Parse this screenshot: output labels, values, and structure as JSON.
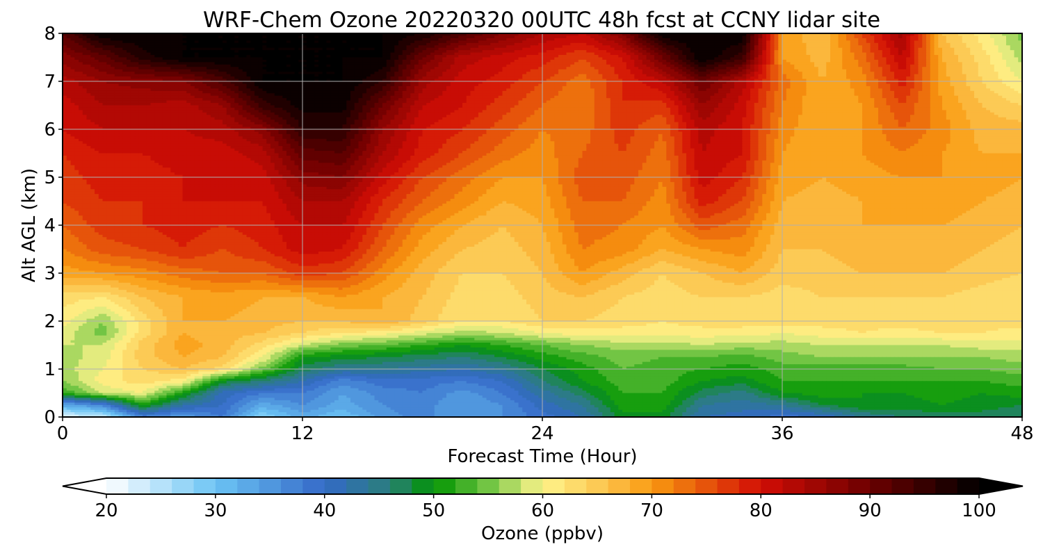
{
  "chart_data": {
    "type": "heatmap",
    "title": "WRF-Chem Ozone  20220320 00UTC 48h fcst at CCNY lidar site",
    "xlabel": "Forecast Time (Hour)",
    "ylabel": "Alt AGL (km)",
    "xlim": [
      0,
      48
    ],
    "ylim": [
      0,
      8
    ],
    "xticks": [
      "0",
      "12",
      "24",
      "36",
      "48"
    ],
    "yticks": [
      "0",
      "1",
      "2",
      "3",
      "4",
      "5",
      "6",
      "7",
      "8"
    ],
    "grid": true,
    "colorbar": {
      "label": "Ozone  (ppbv)",
      "min": 20,
      "max": 100,
      "step": 2,
      "extend": "both",
      "ticks": [
        "20",
        "30",
        "40",
        "50",
        "60",
        "70",
        "80",
        "90",
        "100"
      ],
      "stops": [
        {
          "v": 20,
          "c": "#ffffff"
        },
        {
          "v": 30,
          "c": "#6cc4f4"
        },
        {
          "v": 40,
          "c": "#3469c8"
        },
        {
          "v": 46,
          "c": "#2a7f7a"
        },
        {
          "v": 50,
          "c": "#009400"
        },
        {
          "v": 55,
          "c": "#72c544"
        },
        {
          "v": 60,
          "c": "#fff58c"
        },
        {
          "v": 66,
          "c": "#fbc14a"
        },
        {
          "v": 70,
          "c": "#f99a10"
        },
        {
          "v": 80,
          "c": "#d20d05"
        },
        {
          "v": 90,
          "c": "#6c0000"
        },
        {
          "v": 100,
          "c": "#000000"
        }
      ]
    },
    "x": [
      0,
      2,
      4,
      6,
      8,
      10,
      12,
      14,
      16,
      18,
      20,
      22,
      24,
      26,
      28,
      30,
      32,
      34,
      36,
      38,
      40,
      42,
      44,
      46,
      48
    ],
    "y": [
      0,
      0.25,
      0.5,
      0.75,
      1,
      1.25,
      1.5,
      1.75,
      2,
      2.5,
      3,
      3.5,
      4,
      4.5,
      5,
      5.5,
      6,
      6.5,
      7,
      7.5,
      8
    ],
    "z": [
      [
        22,
        24,
        37,
        34,
        38,
        28,
        33,
        30,
        35,
        37,
        34,
        36,
        39,
        42,
        49,
        49,
        42,
        41,
        39,
        40,
        44,
        46,
        47,
        47,
        46
      ],
      [
        33,
        37,
        51,
        43,
        40,
        33,
        36,
        33,
        36,
        37,
        34,
        36,
        41,
        44,
        51,
        51,
        44,
        43,
        44,
        48,
        50,
        49,
        50,
        49,
        48
      ],
      [
        52,
        58,
        60,
        51,
        41,
        38,
        38,
        34,
        37,
        38,
        35,
        38,
        43,
        47,
        52,
        52,
        47,
        45,
        50,
        51,
        50,
        50,
        51,
        50,
        51
      ],
      [
        56,
        61,
        63,
        61,
        49,
        46,
        42,
        37,
        39,
        39,
        38,
        40,
        46,
        50,
        53,
        53,
        50,
        49,
        52,
        52,
        52,
        52,
        52,
        52,
        53
      ],
      [
        57,
        60,
        64,
        66,
        63,
        55,
        47,
        44,
        44,
        43,
        42,
        44,
        48,
        51,
        54,
        53,
        52,
        51,
        53,
        53,
        53,
        53,
        54,
        54,
        55
      ],
      [
        57,
        59,
        65,
        68,
        66,
        60,
        50,
        49,
        48,
        47,
        46,
        48,
        51,
        53,
        55,
        54,
        54,
        53,
        55,
        56,
        56,
        56,
        56,
        56,
        57
      ],
      [
        58,
        58,
        65,
        69,
        67,
        63,
        58,
        55,
        54,
        52,
        50,
        52,
        54,
        56,
        57,
        57,
        58,
        57,
        57,
        58,
        58,
        58,
        58,
        59,
        59
      ],
      [
        59,
        55,
        63,
        68,
        67,
        66,
        64,
        62,
        61,
        59,
        57,
        58,
        60,
        61,
        61,
        61,
        61,
        61,
        60,
        61,
        62,
        61,
        62,
        62,
        61
      ],
      [
        61,
        56,
        63,
        68,
        68,
        67,
        66,
        66,
        68,
        65,
        62,
        62,
        64,
        64,
        63,
        62,
        63,
        63,
        63,
        63,
        63,
        63,
        64,
        63,
        63
      ],
      [
        63,
        62,
        66,
        68,
        69,
        68,
        68,
        70,
        68,
        66,
        63,
        63,
        65,
        66,
        64,
        63,
        64,
        64,
        63,
        64,
        64,
        64,
        64,
        63,
        62
      ],
      [
        69,
        70,
        71,
        73,
        74,
        74,
        77,
        76,
        71,
        67,
        64,
        64,
        66,
        70,
        67,
        64,
        66,
        68,
        65,
        65,
        66,
        66,
        66,
        65,
        64
      ],
      [
        72,
        75,
        76,
        78,
        76,
        78,
        81,
        80,
        74,
        69,
        66,
        65,
        67,
        72,
        71,
        68,
        70,
        71,
        66,
        66,
        67,
        67,
        67,
        66,
        65
      ],
      [
        74,
        77,
        78,
        79,
        78,
        79,
        82,
        82,
        76,
        71,
        68,
        66,
        68,
        73,
        72,
        70,
        75,
        73,
        67,
        67,
        68,
        68,
        68,
        67,
        66
      ],
      [
        76,
        78,
        78,
        80,
        80,
        80,
        84,
        84,
        78,
        74,
        71,
        68,
        69,
        74,
        74,
        71,
        79,
        76,
        68,
        67,
        68,
        69,
        69,
        68,
        67
      ],
      [
        77,
        79,
        79,
        80,
        80,
        81,
        87,
        88,
        81,
        76,
        73,
        70,
        70,
        75,
        75,
        72,
        81,
        78,
        69,
        68,
        69,
        70,
        70,
        69,
        68
      ],
      [
        78,
        80,
        80,
        81,
        81,
        83,
        91,
        92,
        84,
        79,
        76,
        73,
        71,
        74,
        76,
        73,
        82,
        80,
        70,
        68,
        70,
        72,
        70,
        68,
        68
      ],
      [
        80,
        82,
        82,
        82,
        83,
        87,
        96,
        96,
        86,
        80,
        78,
        75,
        72,
        73,
        77,
        74,
        83,
        80,
        71,
        68,
        70,
        74,
        71,
        67,
        67
      ],
      [
        81,
        84,
        84,
        83,
        86,
        95,
        99,
        99,
        90,
        82,
        80,
        77,
        74,
        72,
        78,
        77,
        86,
        81,
        72,
        68,
        70,
        76,
        70,
        66,
        64
      ],
      [
        83,
        86,
        87,
        88,
        93,
        100,
        100,
        100,
        96,
        85,
        81,
        79,
        76,
        73,
        78,
        82,
        90,
        83,
        73,
        68,
        71,
        79,
        69,
        64,
        60
      ],
      [
        87,
        91,
        97,
        100,
        100,
        100,
        100,
        100,
        100,
        90,
        83,
        81,
        79,
        76,
        80,
        90,
        100,
        95,
        70,
        67,
        73,
        82,
        68,
        63,
        57
      ],
      [
        92,
        100,
        100,
        100,
        100,
        100,
        100,
        100,
        100,
        98,
        93,
        88,
        84,
        82,
        88,
        100,
        100,
        100,
        70,
        66,
        76,
        85,
        66,
        61,
        55
      ]
    ]
  }
}
